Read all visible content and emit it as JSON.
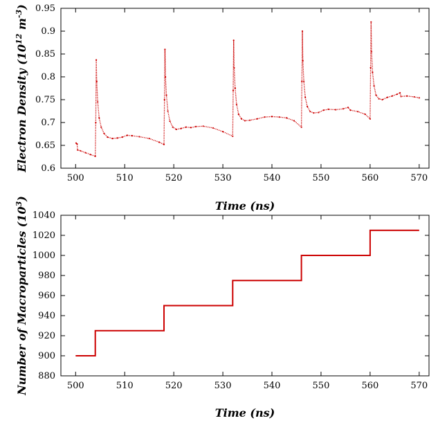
{
  "chart_data": [
    {
      "type": "scatter",
      "ylabel": "Electron Density (10^12 m^-3)",
      "xlabel": "Time (ns)",
      "xlim": [
        497,
        572
      ],
      "ylim": [
        0.6,
        0.95
      ],
      "xticks": [
        500,
        510,
        520,
        530,
        540,
        550,
        560,
        570
      ],
      "yticks": [
        0.6,
        0.65,
        0.7,
        0.75,
        0.8,
        0.85,
        0.9,
        0.95
      ],
      "grid": false,
      "color": "#cc0000",
      "series": [
        {
          "values_xy": [
            [
              500.1,
              0.655
            ],
            [
              500.3,
              0.653
            ],
            [
              500.4,
              0.64
            ],
            [
              501,
              0.638
            ],
            [
              502,
              0.634
            ],
            [
              503,
              0.63
            ],
            [
              504.0,
              0.626
            ],
            [
              504.1,
              0.7
            ],
            [
              504.2,
              0.837
            ],
            [
              504.3,
              0.79
            ],
            [
              504.5,
              0.745
            ],
            [
              504.8,
              0.71
            ],
            [
              505.2,
              0.69
            ],
            [
              505.8,
              0.676
            ],
            [
              506.5,
              0.668
            ],
            [
              507.5,
              0.665
            ],
            [
              508.5,
              0.666
            ],
            [
              509.5,
              0.668
            ],
            [
              510.5,
              0.672
            ],
            [
              511.5,
              0.671
            ],
            [
              513,
              0.669
            ],
            [
              515,
              0.665
            ],
            [
              517,
              0.657
            ],
            [
              518.0,
              0.652
            ],
            [
              518.1,
              0.75
            ],
            [
              518.2,
              0.86
            ],
            [
              518.3,
              0.8
            ],
            [
              518.5,
              0.76
            ],
            [
              518.8,
              0.725
            ],
            [
              519.2,
              0.703
            ],
            [
              519.8,
              0.69
            ],
            [
              520.5,
              0.685
            ],
            [
              521.5,
              0.687
            ],
            [
              522.5,
              0.69
            ],
            [
              523.5,
              0.689
            ],
            [
              524.5,
              0.691
            ],
            [
              526,
              0.692
            ],
            [
              528,
              0.688
            ],
            [
              530,
              0.68
            ],
            [
              532.0,
              0.67
            ],
            [
              532.1,
              0.77
            ],
            [
              532.2,
              0.88
            ],
            [
              532.3,
              0.82
            ],
            [
              532.5,
              0.775
            ],
            [
              532.8,
              0.74
            ],
            [
              533.2,
              0.718
            ],
            [
              533.8,
              0.708
            ],
            [
              534.5,
              0.704
            ],
            [
              535.5,
              0.705
            ],
            [
              537,
              0.708
            ],
            [
              538.5,
              0.712
            ],
            [
              540,
              0.713
            ],
            [
              541.5,
              0.712
            ],
            [
              543,
              0.71
            ],
            [
              544.5,
              0.704
            ],
            [
              546.0,
              0.69
            ],
            [
              546.1,
              0.79
            ],
            [
              546.2,
              0.9
            ],
            [
              546.3,
              0.835
            ],
            [
              546.5,
              0.79
            ],
            [
              546.8,
              0.755
            ],
            [
              547.2,
              0.735
            ],
            [
              547.8,
              0.724
            ],
            [
              548.5,
              0.721
            ],
            [
              549.5,
              0.722
            ],
            [
              550.5,
              0.727
            ],
            [
              551.5,
              0.729
            ],
            [
              553,
              0.728
            ],
            [
              554.5,
              0.73
            ],
            [
              555.5,
              0.733
            ],
            [
              556,
              0.727
            ],
            [
              557.5,
              0.724
            ],
            [
              559,
              0.718
            ],
            [
              560.0,
              0.708
            ],
            [
              560.1,
              0.82
            ],
            [
              560.2,
              0.92
            ],
            [
              560.3,
              0.855
            ],
            [
              560.5,
              0.81
            ],
            [
              560.8,
              0.78
            ],
            [
              561.2,
              0.76
            ],
            [
              561.8,
              0.752
            ],
            [
              562.5,
              0.75
            ],
            [
              563.5,
              0.755
            ],
            [
              564.5,
              0.758
            ],
            [
              565.5,
              0.762
            ],
            [
              566.1,
              0.765
            ],
            [
              566.3,
              0.757
            ],
            [
              567.5,
              0.758
            ],
            [
              569,
              0.756
            ],
            [
              570,
              0.754
            ]
          ]
        }
      ]
    },
    {
      "type": "line",
      "ylabel": "Number of Macroparticles (10^3)",
      "xlabel": "Time (ns)",
      "xlim": [
        497,
        572
      ],
      "ylim": [
        880,
        1040
      ],
      "xticks": [
        500,
        510,
        520,
        530,
        540,
        550,
        560,
        570
      ],
      "yticks": [
        880,
        900,
        920,
        940,
        960,
        980,
        1000,
        1020,
        1040
      ],
      "grid": false,
      "color": "#cc0000",
      "series": [
        {
          "values_xy": [
            [
              500,
              900
            ],
            [
              504,
              900
            ],
            [
              504,
              925
            ],
            [
              518,
              925
            ],
            [
              518,
              950
            ],
            [
              532,
              950
            ],
            [
              532,
              975
            ],
            [
              546,
              975
            ],
            [
              546,
              1000
            ],
            [
              560,
              1000
            ],
            [
              560,
              1025
            ],
            [
              570,
              1025
            ]
          ]
        }
      ]
    }
  ]
}
